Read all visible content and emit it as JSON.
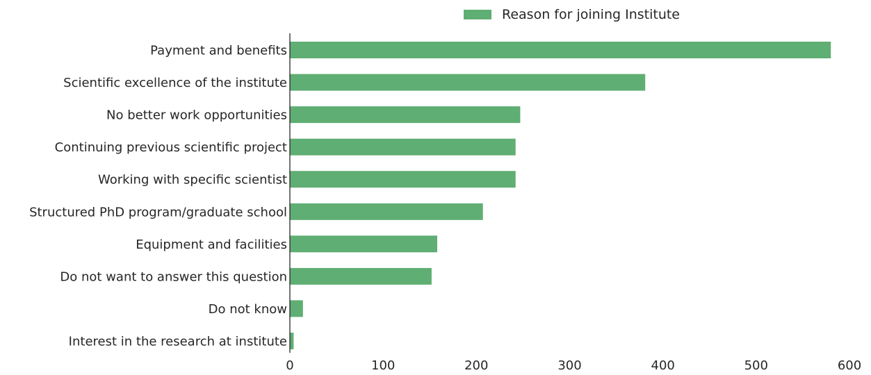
{
  "chart_data": {
    "type": "bar",
    "orientation": "horizontal",
    "title": "",
    "xlabel": "",
    "ylabel": "",
    "categories": [
      "Payment and benefits",
      "Scientific excellence of the institute",
      "No better work opportunities",
      "Continuing previous scientific project",
      "Working with specific scientist",
      "Structured PhD program/graduate school",
      "Equipment and facilities",
      "Do not want to answer this question",
      "Do not know",
      "Interest in the research at institute"
    ],
    "series": [
      {
        "name": "Reason for joining Institute",
        "color": "#5fae73",
        "values": [
          580,
          381,
          247,
          242,
          242,
          207,
          158,
          152,
          14,
          4
        ]
      }
    ],
    "xlim": [
      0,
      600
    ],
    "xticks": [
      0,
      100,
      200,
      300,
      400,
      500,
      600
    ],
    "grid": false,
    "legend_position": "top"
  }
}
